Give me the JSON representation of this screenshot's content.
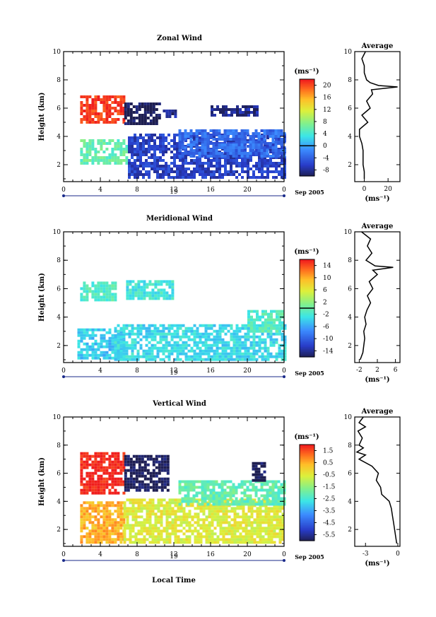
{
  "figure": {
    "date_label": "Sep 2005",
    "day_label": "19",
    "xlabel_bottom": "Local Time",
    "ylabel": "Height (km)",
    "unit_label": "(ms⁻¹)"
  },
  "chart_data": [
    {
      "type": "heatmap",
      "title": "Zonal Wind",
      "ylabel": "Height (km)",
      "x_ticks": [
        "0",
        "4",
        "8",
        "12",
        "16",
        "20",
        "0"
      ],
      "y_ticks": [
        "2",
        "4",
        "6",
        "8",
        "10"
      ],
      "xlim": [
        0,
        24
      ],
      "ylim": [
        0.8,
        10
      ],
      "colorbar": {
        "ticks": [
          "20",
          "16",
          "12",
          "8",
          "4",
          "0",
          "-4",
          "-8"
        ],
        "range": [
          -10,
          22
        ],
        "unit": "(ms⁻¹)",
        "zero_marker": 0
      },
      "regions": [
        {
          "x": [
            1.8,
            6.5
          ],
          "y": [
            4.9,
            6.9
          ],
          "value": 21
        },
        {
          "x": [
            6.6,
            10.5
          ],
          "y": [
            5.0,
            6.4
          ],
          "value": -10
        },
        {
          "x": [
            1.8,
            7.0
          ],
          "y": [
            2.0,
            3.8
          ],
          "value": 6
        },
        {
          "x": [
            7.0,
            24.0
          ],
          "y": [
            1.0,
            4.2
          ],
          "value": -6
        },
        {
          "x": [
            12.5,
            24.0
          ],
          "y": [
            2.5,
            4.5
          ],
          "value": -3
        },
        {
          "x": [
            10.8,
            12.2
          ],
          "y": [
            5.4,
            5.9
          ],
          "value": -8
        },
        {
          "x": [
            16.0,
            21.0
          ],
          "y": [
            5.4,
            6.2
          ],
          "value": -8
        }
      ],
      "profile": {
        "title": "Average",
        "unit": "(ms⁻¹)",
        "x_ticks": [
          "0",
          "20"
        ],
        "xlim": [
          -8,
          30
        ],
        "heights": [
          1.0,
          1.5,
          2.0,
          2.5,
          3.0,
          3.5,
          4.0,
          4.5,
          5.0,
          5.5,
          6.0,
          6.5,
          7.0,
          7.3,
          7.5,
          7.6,
          7.8,
          8.0,
          8.5,
          9.0,
          9.5,
          10.0
        ],
        "values": [
          0,
          0,
          -1,
          -1,
          -1,
          -2,
          -4,
          -4,
          3,
          -2,
          5,
          2,
          7,
          6,
          28,
          12,
          5,
          2,
          0,
          0,
          -2,
          1
        ]
      }
    },
    {
      "type": "heatmap",
      "title": "Meridional Wind",
      "ylabel": "Height (km)",
      "x_ticks": [
        "0",
        "4",
        "8",
        "12",
        "16",
        "20",
        "0"
      ],
      "y_ticks": [
        "2",
        "4",
        "6",
        "8",
        "10"
      ],
      "xlim": [
        0,
        24
      ],
      "ylim": [
        0.8,
        10
      ],
      "colorbar": {
        "ticks": [
          "14",
          "10",
          "6",
          "2",
          "-2",
          "-6",
          "-10",
          "-14"
        ],
        "range": [
          -16,
          16
        ],
        "unit": "(ms⁻¹)",
        "zero_marker": 0
      },
      "regions": [
        {
          "x": [
            1.5,
            6.5
          ],
          "y": [
            1.1,
            3.2
          ],
          "value": -4
        },
        {
          "x": [
            5.5,
            24.0
          ],
          "y": [
            1.0,
            3.5
          ],
          "value": -3
        },
        {
          "x": [
            6.8,
            12.0
          ],
          "y": [
            5.3,
            6.6
          ],
          "value": -2
        },
        {
          "x": [
            1.8,
            5.5
          ],
          "y": [
            5.2,
            6.5
          ],
          "value": -1
        },
        {
          "x": [
            20.0,
            24.0
          ],
          "y": [
            3.0,
            4.5
          ],
          "value": -1
        }
      ],
      "profile": {
        "title": "Average",
        "unit": "(ms⁻¹)",
        "x_ticks": [
          "-2",
          "2",
          "6"
        ],
        "xlim": [
          -3,
          7
        ],
        "heights": [
          1.0,
          1.5,
          2.0,
          2.5,
          3.0,
          3.5,
          4.0,
          4.5,
          5.0,
          5.5,
          6.0,
          6.5,
          7.0,
          7.3,
          7.5,
          7.6,
          7.8,
          8.0,
          8.5,
          9.0,
          9.5,
          10.0
        ],
        "values": [
          -1.8,
          -1.2,
          -1.0,
          -0.8,
          -1.0,
          -0.5,
          -0.8,
          -0.3,
          0.5,
          -0.2,
          1.0,
          0.2,
          2.0,
          1.0,
          5.5,
          1.5,
          0.5,
          -0.5,
          0.8,
          -0.2,
          0.5,
          -1.5
        ]
      }
    },
    {
      "type": "heatmap",
      "title": "Vertical Wind",
      "ylabel": "Height (km)",
      "x_ticks": [
        "0",
        "4",
        "8",
        "12",
        "16",
        "20",
        "0"
      ],
      "y_ticks": [
        "2",
        "4",
        "6",
        "8",
        "10"
      ],
      "xlim": [
        0,
        24
      ],
      "ylim": [
        0.8,
        10
      ],
      "colorbar": {
        "ticks": [
          "1.5",
          "0.5",
          "-0.5",
          "-1.5",
          "-2.5",
          "-3.5",
          "-4.5",
          "-5.5"
        ],
        "range": [
          -6,
          2
        ],
        "unit": "(ms⁻¹)"
      },
      "regions": [
        {
          "x": [
            1.8,
            6.5
          ],
          "y": [
            4.6,
            7.5
          ],
          "value": 2.0
        },
        {
          "x": [
            6.6,
            11.5
          ],
          "y": [
            4.7,
            7.3
          ],
          "value": -6.0
        },
        {
          "x": [
            1.8,
            6.5
          ],
          "y": [
            1.0,
            4.0
          ],
          "value": 0.5
        },
        {
          "x": [
            6.5,
            24.0
          ],
          "y": [
            1.0,
            4.2
          ],
          "value": -0.5
        },
        {
          "x": [
            12.5,
            24.0
          ],
          "y": [
            3.8,
            5.5
          ],
          "value": -2.0
        },
        {
          "x": [
            20.5,
            22.0
          ],
          "y": [
            5.5,
            6.8
          ],
          "value": -6.0
        }
      ],
      "profile": {
        "title": "Average",
        "unit": "(ms⁻¹)",
        "x_ticks": [
          "-3",
          "0"
        ],
        "xlim": [
          -4,
          0.2
        ],
        "heights": [
          1.0,
          1.5,
          2.0,
          2.5,
          3.0,
          3.5,
          4.0,
          4.5,
          5.0,
          5.5,
          6.0,
          6.5,
          7.0,
          7.3,
          7.5,
          7.8,
          8.0,
          8.5,
          9.0,
          9.3,
          9.6,
          10.0
        ],
        "values": [
          -0.1,
          -0.2,
          -0.3,
          -0.4,
          -0.5,
          -0.6,
          -0.8,
          -1.5,
          -1.6,
          -2.0,
          -1.8,
          -2.4,
          -3.6,
          -3.0,
          -3.8,
          -3.2,
          -3.6,
          -3.3,
          -3.7,
          -3.0,
          -3.6,
          -3.2
        ]
      }
    }
  ]
}
